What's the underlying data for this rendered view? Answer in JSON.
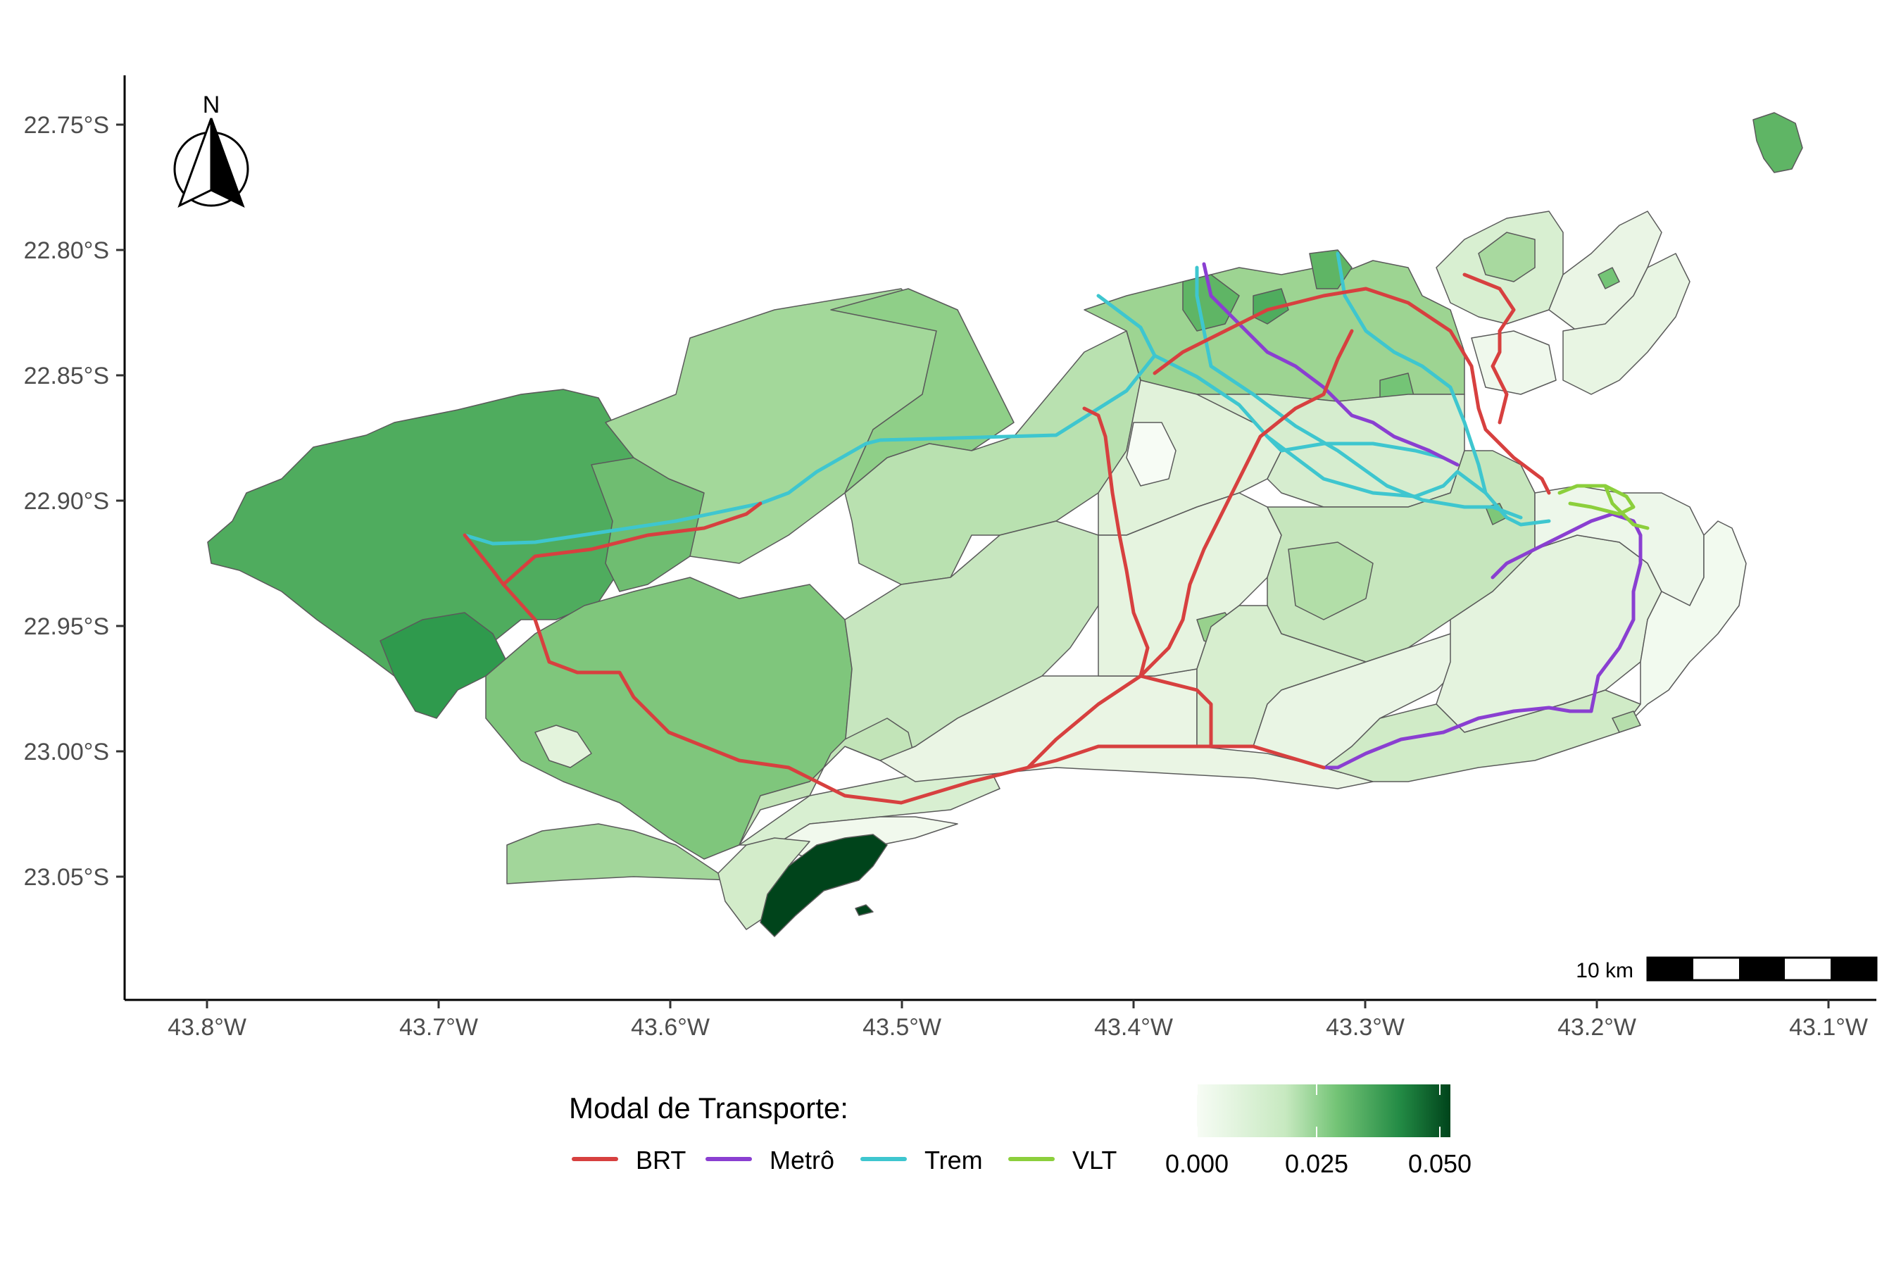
{
  "map": {
    "y_ticks": [
      {
        "lat": -22.75,
        "label": "22.75°S"
      },
      {
        "lat": -22.8,
        "label": "22.80°S"
      },
      {
        "lat": -22.85,
        "label": "22.85°S"
      },
      {
        "lat": -22.9,
        "label": "22.90°S"
      },
      {
        "lat": -22.95,
        "label": "22.95°S"
      },
      {
        "lat": -23.0,
        "label": "23.00°S"
      },
      {
        "lat": -23.05,
        "label": "23.05°S"
      }
    ],
    "x_ticks": [
      {
        "lon": -43.8,
        "label": "43.8°W"
      },
      {
        "lon": -43.7,
        "label": "43.7°W"
      },
      {
        "lon": -43.6,
        "label": "43.6°W"
      },
      {
        "lon": -43.5,
        "label": "43.5°W"
      },
      {
        "lon": -43.4,
        "label": "43.4°W"
      },
      {
        "lon": -43.3,
        "label": "43.3°W"
      },
      {
        "lon": -43.2,
        "label": "43.2°W"
      },
      {
        "lon": -43.1,
        "label": "43.1°W"
      }
    ],
    "north_arrow_label": "N",
    "scale_bar_label": "10 km"
  },
  "legend": {
    "title": "Modal de Transporte:",
    "items": [
      {
        "label": "BRT",
        "color": "#d7403f"
      },
      {
        "label": "Metrô",
        "color": "#8a3fd1"
      },
      {
        "label": "Trem",
        "color": "#3ec6cf"
      },
      {
        "label": "VLT",
        "color": "#8ccf3c"
      }
    ]
  },
  "colorbar": {
    "labels": [
      "0.000",
      "0.025",
      "0.050"
    ],
    "colors": [
      "#f7fcf5",
      "#a1d99b",
      "#41ab5d",
      "#00441b"
    ]
  }
}
